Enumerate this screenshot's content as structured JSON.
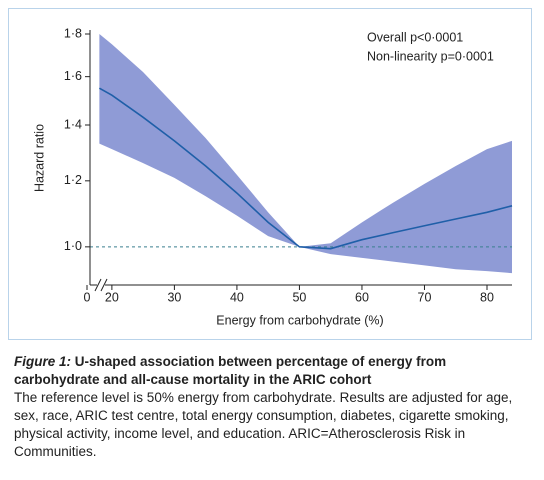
{
  "chart_data": {
    "type": "line_band",
    "ylabel": "Hazard ratio",
    "xlabel": "Energy from carbohydrate (%)",
    "annotations": [
      "Overall p<0·0001",
      "Non-linearity p=0·0001"
    ],
    "x": [
      18,
      20,
      25,
      30,
      35,
      40,
      45,
      50,
      55,
      60,
      65,
      70,
      75,
      80,
      84
    ],
    "values": [
      1.55,
      1.52,
      1.43,
      1.34,
      1.25,
      1.16,
      1.07,
      1.0,
      0.995,
      1.02,
      1.04,
      1.06,
      1.08,
      1.1,
      1.12
    ],
    "upper": [
      1.8,
      1.75,
      1.62,
      1.48,
      1.35,
      1.22,
      1.1,
      1.0,
      1.01,
      1.07,
      1.13,
      1.19,
      1.25,
      1.31,
      1.34
    ],
    "lower": [
      1.33,
      1.31,
      1.26,
      1.21,
      1.15,
      1.09,
      1.03,
      1.0,
      0.98,
      0.97,
      0.96,
      0.95,
      0.94,
      0.935,
      0.93
    ],
    "color": "#1f5fa8",
    "band_color": "#8f9bd6",
    "reference_line": 1,
    "log_y": true,
    "x_axis_break": true,
    "xlim": [
      16.5,
      84
    ],
    "ylim": [
      0.9,
      1.82
    ],
    "xticks": [
      0,
      20,
      30,
      40,
      50,
      60,
      70,
      80
    ],
    "yticks": [
      {
        "value": 1.0,
        "label": "1·0"
      },
      {
        "value": 1.2,
        "label": "1·2"
      },
      {
        "value": 1.4,
        "label": "1·4"
      },
      {
        "value": 1.6,
        "label": "1·6"
      },
      {
        "value": 1.8,
        "label": "1·8"
      }
    ]
  },
  "caption": {
    "label": "Figure 1:",
    "title": "U-shaped association between percentage of energy from carbohydrate and all-cause mortality in the ARIC cohort",
    "text": "The reference level is 50% energy from carbohydrate. Results are adjusted for age, sex, race, ARIC test centre, total energy consumption, diabetes, cigarette smoking, physical activity, income level, and education. ARIC=Atherosclerosis Risk in Communities."
  }
}
